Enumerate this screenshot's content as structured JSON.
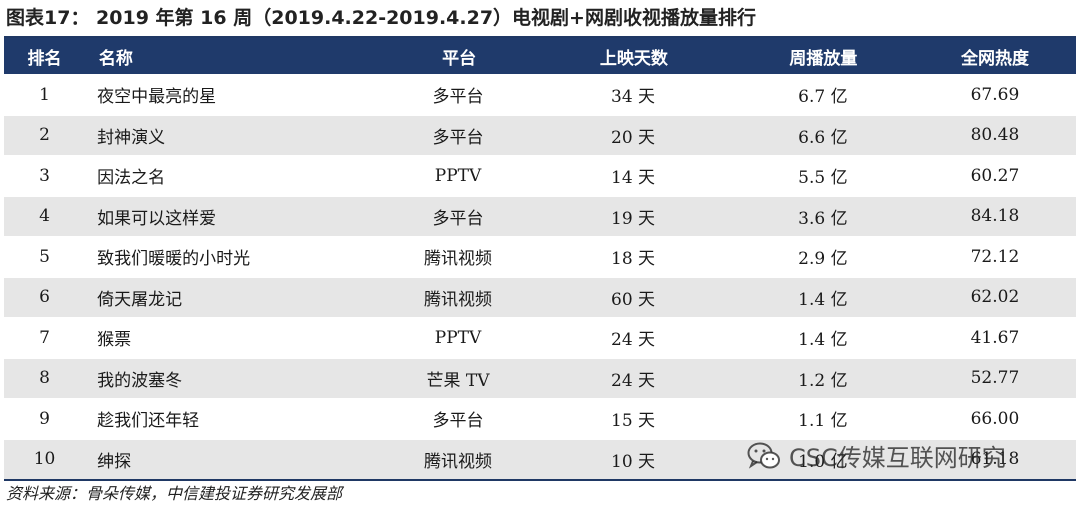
{
  "title": "图表17： 2019 年第 16 周（2019.4.22-2019.4.27）电视剧+网剧收视播放量排行",
  "table": {
    "headers": [
      "排名",
      "名称",
      "平台",
      "上映天数",
      "周播放量",
      "全网热度"
    ],
    "rows": [
      [
        "1",
        "夜空中最亮的星",
        "多平台",
        "34 天",
        "6.7 亿",
        "67.69"
      ],
      [
        "2",
        "封神演义",
        "多平台",
        "20 天",
        "6.6 亿",
        "80.48"
      ],
      [
        "3",
        "因法之名",
        "PPTV",
        "14 天",
        "5.5 亿",
        "60.27"
      ],
      [
        "4",
        "如果可以这样爱",
        "多平台",
        "19 天",
        "3.6 亿",
        "84.18"
      ],
      [
        "5",
        "致我们暖暖的小时光",
        "腾讯视频",
        "18 天",
        "2.9 亿",
        "72.12"
      ],
      [
        "6",
        "倚天屠龙记",
        "腾讯视频",
        "60 天",
        "1.4 亿",
        "62.02"
      ],
      [
        "7",
        "猴票",
        "PPTV",
        "24 天",
        "1.4 亿",
        "41.67"
      ],
      [
        "8",
        "我的波塞冬",
        "芒果 TV",
        "24 天",
        "1.2 亿",
        "52.77"
      ],
      [
        "9",
        "趁我们还年轻",
        "多平台",
        "15 天",
        "1.1 亿",
        "66.00"
      ],
      [
        "10",
        "绅探",
        "腾讯视频",
        "10 天",
        "1.0 亿",
        "61.18"
      ]
    ]
  },
  "source": "资料来源：骨朵传媒，中信建投证券研究发展部",
  "watermark": {
    "text": "CSC传媒互联网研究",
    "icon": "wechat-icon"
  },
  "colors": {
    "header_bg": "#1f3a6b",
    "stripe": "#e6e6e6"
  }
}
